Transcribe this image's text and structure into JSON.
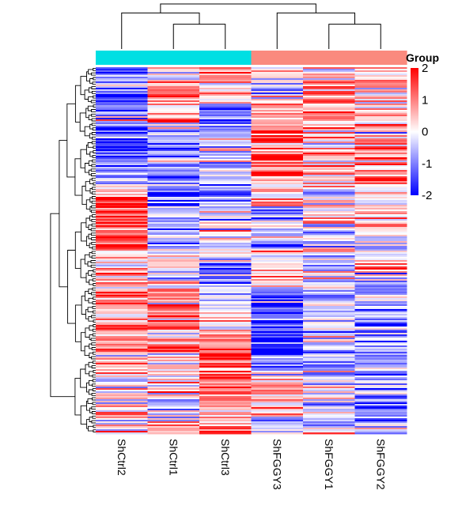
{
  "chart_data": {
    "type": "heatmap",
    "columns": [
      "ShCtrl2",
      "ShCtrl1",
      "ShCtrl3",
      "ShFGGY3",
      "ShFGGY1",
      "ShFGGY2"
    ],
    "column_groups": [
      "ShCtrl",
      "ShCtrl",
      "ShCtrl",
      "ShFGGY",
      "ShFGGY",
      "ShFGGY"
    ],
    "group_colors": {
      "ShCtrl": "#00dfe3",
      "ShFGGY": "#fa8a7e"
    },
    "row_dendrogram": true,
    "column_dendrogram": [
      {
        "a": 1,
        "b": 2,
        "h": 0.55
      },
      {
        "a": 0,
        "b": "m0",
        "h": 0.8
      },
      {
        "a": 4,
        "b": 5,
        "h": 0.55
      },
      {
        "a": 3,
        "b": "m2",
        "h": 0.8
      },
      {
        "a": "m1",
        "b": "m3",
        "h": 1.0
      }
    ],
    "legend": {
      "title": "Group",
      "position": "right",
      "ticks": [
        2,
        1,
        0,
        -1,
        -2
      ],
      "range": [
        -2,
        2
      ],
      "colors": {
        "low": "#0000ff",
        "mid": "#ffffff",
        "high": "#ff0000"
      }
    },
    "row_profiles": [
      {
        "from": 0.0,
        "to": 0.04,
        "values": [
          -1.7,
          0.2,
          0.6,
          0.0,
          0.4,
          0.3
        ]
      },
      {
        "from": 0.04,
        "to": 0.1,
        "values": [
          -1.2,
          0.6,
          0.5,
          -0.4,
          1.3,
          0.4
        ]
      },
      {
        "from": 0.1,
        "to": 0.15,
        "values": [
          -0.5,
          0.6,
          -0.9,
          0.7,
          1.0,
          0.5
        ]
      },
      {
        "from": 0.15,
        "to": 0.2,
        "values": [
          -1.3,
          -0.3,
          -0.5,
          1.4,
          0.8,
          0.3
        ]
      },
      {
        "from": 0.2,
        "to": 0.26,
        "values": [
          -1.0,
          -1.0,
          -0.3,
          1.0,
          0.6,
          0.9
        ]
      },
      {
        "from": 0.26,
        "to": 0.32,
        "values": [
          -0.7,
          -1.2,
          -1.0,
          0.9,
          0.4,
          0.8
        ]
      },
      {
        "from": 0.32,
        "to": 0.38,
        "values": [
          0.9,
          -1.3,
          -0.8,
          0.7,
          0.2,
          0.5
        ]
      },
      {
        "from": 0.38,
        "to": 0.45,
        "values": [
          1.4,
          -0.7,
          -0.3,
          -0.6,
          0.3,
          0.3
        ]
      },
      {
        "from": 0.45,
        "to": 0.5,
        "values": [
          1.8,
          -0.6,
          -0.2,
          -0.4,
          -0.7,
          -0.3
        ]
      },
      {
        "from": 0.5,
        "to": 0.55,
        "values": [
          0.5,
          0.4,
          -0.5,
          0.1,
          -0.6,
          0.6
        ]
      },
      {
        "from": 0.55,
        "to": 0.6,
        "values": [
          0.4,
          0.3,
          -0.9,
          0.6,
          -0.4,
          -0.4
        ]
      },
      {
        "from": 0.6,
        "to": 0.66,
        "values": [
          0.9,
          1.0,
          -0.2,
          -1.4,
          -0.3,
          -0.7
        ]
      },
      {
        "from": 0.66,
        "to": 0.72,
        "values": [
          0.8,
          1.0,
          0.3,
          -1.6,
          -0.3,
          -0.8
        ]
      },
      {
        "from": 0.72,
        "to": 0.78,
        "values": [
          0.7,
          0.8,
          0.7,
          -1.7,
          -0.5,
          -0.6
        ]
      },
      {
        "from": 0.78,
        "to": 0.84,
        "values": [
          0.5,
          0.4,
          1.3,
          -0.7,
          -0.8,
          -0.8
        ]
      },
      {
        "from": 0.84,
        "to": 0.9,
        "values": [
          0.2,
          0.3,
          1.0,
          0.4,
          -0.4,
          -0.9
        ]
      },
      {
        "from": 0.9,
        "to": 0.95,
        "values": [
          0.4,
          -0.5,
          0.9,
          0.3,
          -0.6,
          -1.0
        ]
      },
      {
        "from": 0.95,
        "to": 1.0,
        "values": [
          -0.2,
          0.3,
          1.2,
          -0.3,
          -0.5,
          -0.7
        ]
      }
    ]
  }
}
